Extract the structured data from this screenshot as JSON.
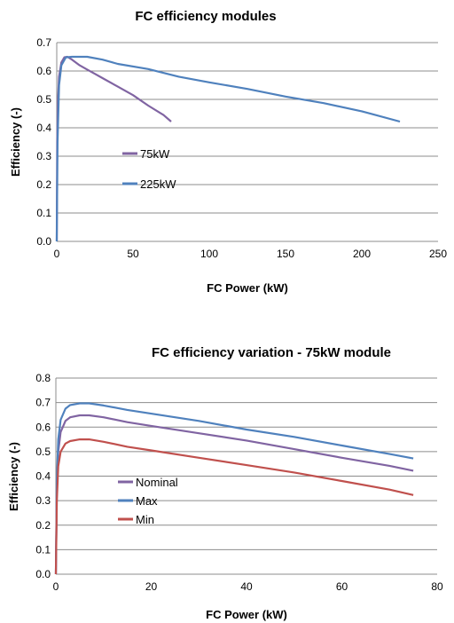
{
  "chart_data": [
    {
      "type": "line",
      "title": "FC efficiency modules",
      "xlabel": "FC Power (kW)",
      "ylabel": "Efficiency (-)",
      "xlim": [
        0,
        250
      ],
      "ylim": [
        0,
        0.7
      ],
      "xticks": [
        "0",
        "50",
        "100",
        "150",
        "200",
        "250"
      ],
      "yticks": [
        "0.0",
        "0.1",
        "0.2",
        "0.3",
        "0.4",
        "0.5",
        "0.6",
        "0.7"
      ],
      "grid": true,
      "legend_position": "center-left",
      "series": [
        {
          "name": "75kW",
          "color": "#8064a2",
          "points": [
            [
              0,
              0
            ],
            [
              0.3,
              0.35
            ],
            [
              0.8,
              0.5
            ],
            [
              1.5,
              0.58
            ],
            [
              3,
              0.63
            ],
            [
              5,
              0.648
            ],
            [
              7,
              0.65
            ],
            [
              10,
              0.64
            ],
            [
              15,
              0.62
            ],
            [
              20,
              0.605
            ],
            [
              25,
              0.59
            ],
            [
              30,
              0.575
            ],
            [
              40,
              0.545
            ],
            [
              50,
              0.515
            ],
            [
              60,
              0.478
            ],
            [
              70,
              0.445
            ],
            [
              75,
              0.422
            ]
          ]
        },
        {
          "name": "225kW",
          "color": "#4f81bd",
          "points": [
            [
              0,
              0
            ],
            [
              0.5,
              0.35
            ],
            [
              1.5,
              0.55
            ],
            [
              3,
              0.62
            ],
            [
              6,
              0.648
            ],
            [
              10,
              0.65
            ],
            [
              20,
              0.65
            ],
            [
              30,
              0.64
            ],
            [
              40,
              0.625
            ],
            [
              60,
              0.607
            ],
            [
              80,
              0.58
            ],
            [
              100,
              0.56
            ],
            [
              125,
              0.537
            ],
            [
              150,
              0.51
            ],
            [
              175,
              0.487
            ],
            [
              200,
              0.458
            ],
            [
              225,
              0.422
            ]
          ]
        }
      ]
    },
    {
      "type": "line",
      "title": "FC efficiency variation - 75kW module",
      "xlabel": "FC Power (kW)",
      "ylabel": "Efficiency (-)",
      "xlim": [
        0,
        80
      ],
      "ylim": [
        0,
        0.8
      ],
      "xticks": [
        "0",
        "20",
        "40",
        "60",
        "80"
      ],
      "yticks": [
        "0.0",
        "0.1",
        "0.2",
        "0.3",
        "0.4",
        "0.5",
        "0.6",
        "0.7",
        "0.8"
      ],
      "grid": true,
      "legend_position": "center-left",
      "series": [
        {
          "name": "Nominal",
          "color": "#8064a2",
          "points": [
            [
              0,
              0
            ],
            [
              0.2,
              0.35
            ],
            [
              0.5,
              0.5
            ],
            [
              1,
              0.58
            ],
            [
              2,
              0.625
            ],
            [
              3,
              0.64
            ],
            [
              5,
              0.648
            ],
            [
              7,
              0.648
            ],
            [
              10,
              0.64
            ],
            [
              15,
              0.62
            ],
            [
              20,
              0.605
            ],
            [
              30,
              0.575
            ],
            [
              40,
              0.545
            ],
            [
              50,
              0.51
            ],
            [
              60,
              0.475
            ],
            [
              70,
              0.442
            ],
            [
              75,
              0.422
            ]
          ]
        },
        {
          "name": "Max",
          "color": "#4f81bd",
          "points": [
            [
              0,
              0
            ],
            [
              0.2,
              0.38
            ],
            [
              0.5,
              0.55
            ],
            [
              1,
              0.63
            ],
            [
              2,
              0.675
            ],
            [
              3,
              0.69
            ],
            [
              5,
              0.697
            ],
            [
              7,
              0.697
            ],
            [
              10,
              0.688
            ],
            [
              15,
              0.67
            ],
            [
              20,
              0.655
            ],
            [
              30,
              0.625
            ],
            [
              40,
              0.59
            ],
            [
              50,
              0.56
            ],
            [
              60,
              0.525
            ],
            [
              70,
              0.49
            ],
            [
              75,
              0.472
            ]
          ]
        },
        {
          "name": "Min",
          "color": "#c0504d",
          "points": [
            [
              0,
              0
            ],
            [
              0.2,
              0.3
            ],
            [
              0.5,
              0.44
            ],
            [
              1,
              0.5
            ],
            [
              2,
              0.533
            ],
            [
              3,
              0.543
            ],
            [
              5,
              0.55
            ],
            [
              7,
              0.55
            ],
            [
              10,
              0.54
            ],
            [
              15,
              0.52
            ],
            [
              20,
              0.505
            ],
            [
              30,
              0.475
            ],
            [
              40,
              0.445
            ],
            [
              50,
              0.415
            ],
            [
              60,
              0.38
            ],
            [
              70,
              0.345
            ],
            [
              75,
              0.323
            ]
          ]
        }
      ]
    }
  ]
}
